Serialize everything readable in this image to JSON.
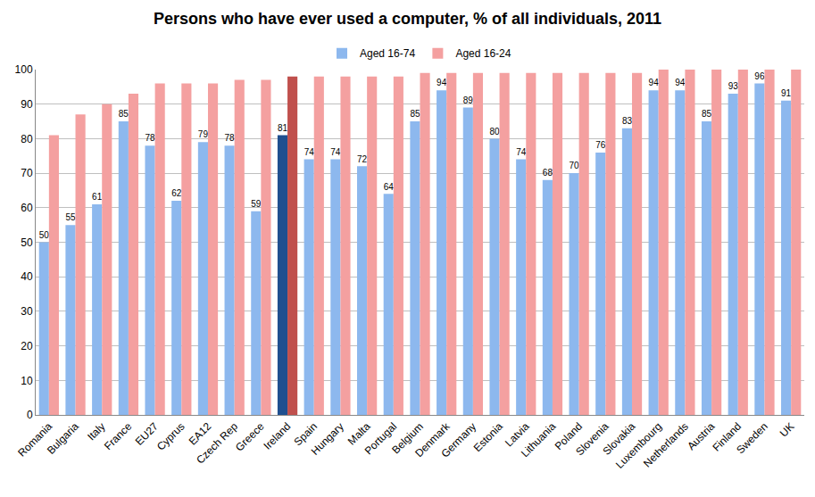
{
  "chart_data": {
    "type": "bar",
    "title": "Persons who have ever used a computer, % of all individuals, 2011",
    "categories": [
      "Romania",
      "Bulgaria",
      "Italy",
      "France",
      "EU27",
      "Cyprus",
      "EA12",
      "Czech Rep",
      "Greece",
      "Ireland",
      "Spain",
      "Hungary",
      "Malta",
      "Portugal",
      "Belgium",
      "Denmark",
      "Germany",
      "Estonia",
      "Latvia",
      "Lithuania",
      "Poland",
      "Slovenia",
      "Slovakia",
      "Luxembourg",
      "Netherlands",
      "Austria",
      "Finland",
      "Sweden",
      "UK"
    ],
    "series": [
      {
        "name": "Aged 16-74",
        "values": [
          50,
          55,
          61,
          85,
          78,
          62,
          79,
          78,
          59,
          81,
          74,
          74,
          72,
          64,
          85,
          94,
          89,
          80,
          74,
          68,
          70,
          76,
          83,
          94,
          94,
          85,
          93,
          96,
          91
        ],
        "colors": [
          "#8db8ee",
          "#8db8ee",
          "#8db8ee",
          "#8db8ee",
          "#8db8ee",
          "#8db8ee",
          "#8db8ee",
          "#8db8ee",
          "#8db8ee",
          "#1f4f8f",
          "#8db8ee",
          "#8db8ee",
          "#8db8ee",
          "#8db8ee",
          "#8db8ee",
          "#8db8ee",
          "#8db8ee",
          "#8db8ee",
          "#8db8ee",
          "#8db8ee",
          "#8db8ee",
          "#8db8ee",
          "#8db8ee",
          "#8db8ee",
          "#8db8ee",
          "#8db8ee",
          "#8db8ee",
          "#8db8ee",
          "#8db8ee"
        ],
        "data_labels": true
      },
      {
        "name": "Aged 16-24",
        "values": [
          81,
          87,
          90,
          93,
          96,
          96,
          96,
          97,
          97,
          98,
          98,
          98,
          98,
          98,
          99,
          99,
          99,
          99,
          99,
          99,
          99,
          99,
          99,
          100,
          100,
          100,
          100,
          100,
          100
        ],
        "colors": [
          "#f4a0a0",
          "#f4a0a0",
          "#f4a0a0",
          "#f4a0a0",
          "#f4a0a0",
          "#f4a0a0",
          "#f4a0a0",
          "#f4a0a0",
          "#f4a0a0",
          "#c0504d",
          "#f4a0a0",
          "#f4a0a0",
          "#f4a0a0",
          "#f4a0a0",
          "#f4a0a0",
          "#f4a0a0",
          "#f4a0a0",
          "#f4a0a0",
          "#f4a0a0",
          "#f4a0a0",
          "#f4a0a0",
          "#f4a0a0",
          "#f4a0a0",
          "#f4a0a0",
          "#f4a0a0",
          "#f4a0a0",
          "#f4a0a0",
          "#f4a0a0",
          "#f4a0a0"
        ],
        "data_labels": false
      }
    ],
    "ylim": [
      0,
      100
    ],
    "yticks": [
      0,
      10,
      20,
      30,
      40,
      50,
      60,
      70,
      80,
      90,
      100
    ],
    "grid": true,
    "legend": "top"
  }
}
